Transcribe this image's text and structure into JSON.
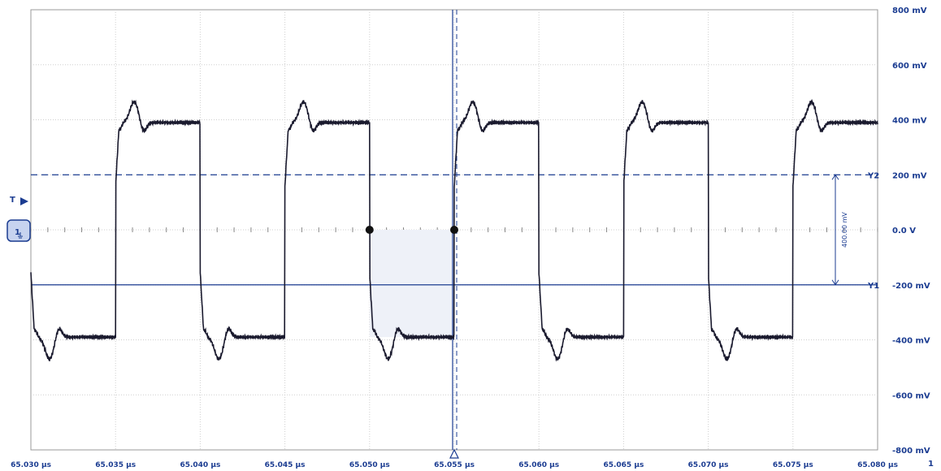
{
  "chart_data": {
    "type": "line",
    "x_unit": "µs",
    "y_unit": "mV",
    "xlim": [
      65.03,
      65.08
    ],
    "ylim": [
      -800,
      800
    ],
    "x_ticks": [
      "65.030 µs",
      "65.035 µs",
      "65.040 µs",
      "65.045 µs",
      "65.050 µs",
      "65.055 µs",
      "65.060 µs",
      "65.065 µs",
      "65.070 µs",
      "65.075 µs",
      "65.080 µs"
    ],
    "y_ticks": [
      "800 mV",
      "600 mV",
      "400 mV",
      "200 mV",
      "0.0 V",
      "-200 mV",
      "-400 mV",
      "-600 mV",
      "-800 mV"
    ],
    "grid": true,
    "series": [
      {
        "period_us": 0.01,
        "high_level_mV": 390,
        "low_level_mV": -390,
        "overshoot_mV": 465,
        "undershoot_mV": -470,
        "rising_edges_us": [
          65.035,
          65.045,
          65.055,
          65.065,
          65.075
        ],
        "falling_edges_us": [
          65.03,
          65.04,
          65.05,
          65.06,
          65.07,
          65.08
        ],
        "color": "#1a1a2e"
      }
    ],
    "cursors": {
      "y2": {
        "label": "Y2",
        "value_mV": 200
      },
      "y1": {
        "label": "Y1",
        "value_mV": -200
      },
      "delta_label": "400.00 mV",
      "markers_us": [
        65.05,
        65.055
      ]
    },
    "trigger_marker": "T",
    "channel_marker": "1",
    "bottom_right_label": "1",
    "colors": {
      "trace": "#1a1a2e",
      "cursor": "#1b3c91",
      "grid": "#cfcfcf",
      "axis_text": "#1b3c91"
    }
  }
}
